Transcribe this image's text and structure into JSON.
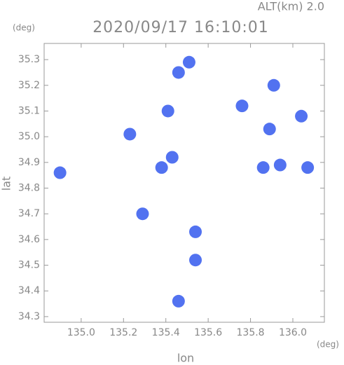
{
  "chart_data": {
    "type": "scatter",
    "title": "2020/09/17 16:10:01",
    "subtitle": "ALT(km) 2.0",
    "y_unit": "(deg)",
    "x_unit": "(deg)",
    "xlabel": "lon",
    "ylabel": "lat",
    "xlim": [
      134.825,
      136.149
    ],
    "ylim": [
      34.278,
      35.363
    ],
    "xticks": [
      {
        "value": 135,
        "label": "135.0"
      },
      135.2,
      135.4,
      135.6,
      135.8,
      {
        "value": 136,
        "label": "136.0"
      }
    ],
    "yticks": [
      34.3,
      34.4,
      34.5,
      34.6,
      34.7,
      34.8,
      34.9,
      {
        "value": 35,
        "label": "35.0"
      },
      35.1,
      35.2,
      35.3
    ],
    "color": "#3f63ee",
    "x": [
      135.51,
      135.46,
      135.41,
      135.38,
      135.43,
      135.76,
      135.91,
      136.04,
      135.89,
      135.94,
      136.07,
      135.86,
      135.54,
      135.54,
      135.46,
      134.9,
      135.29,
      135.23
    ],
    "y": [
      35.29,
      35.25,
      35.1,
      34.88,
      34.92,
      35.12,
      35.2,
      35.08,
      35.03,
      34.89,
      34.88,
      34.88,
      34.52,
      34.63,
      34.36,
      34.86,
      34.7,
      35.01
    ]
  }
}
